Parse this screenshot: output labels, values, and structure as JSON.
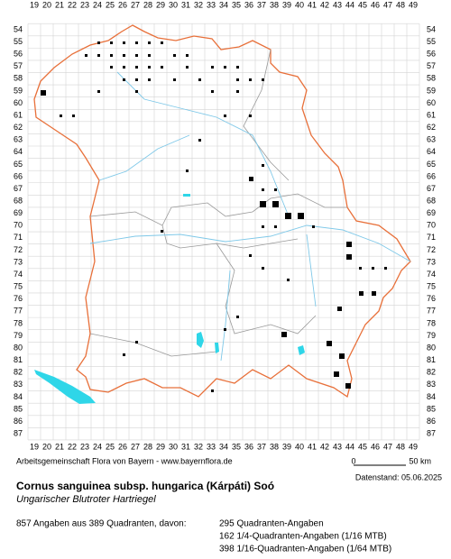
{
  "map": {
    "columns": [
      19,
      20,
      21,
      22,
      23,
      24,
      25,
      26,
      27,
      28,
      29,
      30,
      31,
      32,
      33,
      34,
      35,
      36,
      37,
      38,
      39,
      40,
      41,
      42,
      43,
      44,
      45,
      46,
      47,
      48,
      49
    ],
    "rows": [
      54,
      55,
      56,
      57,
      58,
      59,
      60,
      61,
      62,
      63,
      64,
      65,
      66,
      67,
      68,
      69,
      70,
      71,
      72,
      73,
      74,
      75,
      76,
      77,
      78,
      79,
      80,
      81,
      82,
      83,
      84,
      85,
      86,
      87
    ],
    "credit": "Arbeitsgemeinschaft Flora von Bayern - www.bayernflora.de",
    "scale_start": "0",
    "scale_end": "50 km",
    "date": "Datenstand: 05.06.2025",
    "title": "Cornus sanguinea subsp. hungarica (Kárpáti) Soó",
    "subtitle": "Ungarischer Blutroter Hartriegel",
    "summary": "857 Angaben aus 389 Quadranten, davon:",
    "counts": [
      "295 Quadranten-Angaben",
      "162 1/4-Quadranten-Angaben (1/16 MTB)",
      "398 1/16-Quadranten-Angaben (1/64 MTB)"
    ]
  }
}
